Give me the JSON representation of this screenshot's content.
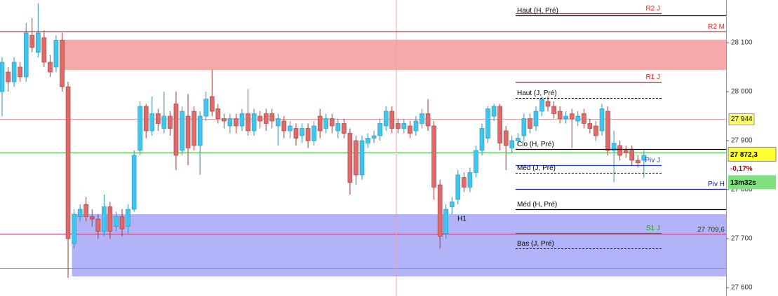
{
  "chart_data": {
    "type": "candlestick",
    "ylim": [
      27583,
      28187
    ],
    "yticks": [
      {
        "value": 28100,
        "label": "28 100"
      },
      {
        "value": 28000,
        "label": "28 000"
      },
      {
        "value": 27900,
        "label": "27 900"
      },
      {
        "value": 27800,
        "label": "27 800"
      },
      {
        "value": 27700,
        "label": "27 700"
      },
      {
        "value": 27600,
        "label": "27 600"
      }
    ],
    "up_color": "#3ec6f0",
    "down_color": "#e06a6a",
    "series": [
      {
        "open": [
          28000,
          28040,
          28020,
          28050,
          28030,
          28115,
          28080,
          28110,
          28060,
          28050,
          28105,
          28010,
          27690,
          27745,
          27770,
          27745,
          27740,
          27715,
          27765,
          27725,
          27745,
          27725,
          27760,
          27880,
          27970,
          27920,
          27955,
          27925,
          27950,
          27975,
          27880,
          27950,
          27960,
          27890,
          27950,
          27990,
          27965,
          27945,
          27930,
          27945,
          27930,
          27955,
          27920,
          27950,
          27955,
          27955,
          27930,
          27940,
          27920,
          27925,
          27910,
          27925,
          27900,
          27950,
          27925,
          27945,
          27920,
          27935,
          27915,
          27900,
          27830,
          27895,
          27905,
          27910,
          27930,
          27960,
          27935,
          27925,
          27930,
          27920,
          27935,
          27955,
          27930,
          27810,
          27710,
          27765,
          27780,
          27825,
          27805,
          27835,
          27880,
          27905,
          27950,
          27970,
          27920,
          27885,
          27900,
          27910,
          27945,
          27930,
          27960,
          27980,
          27970,
          27960,
          27945,
          27955,
          27940,
          27955,
          27935,
          27930,
          27920,
          27960,
          27880,
          27890,
          27880,
          27880,
          27860,
          27860
        ],
        "high": [
          28070,
          28050,
          28070,
          28060,
          28140,
          28150,
          28180,
          28125,
          28075,
          28115,
          28120,
          28020,
          27760,
          27770,
          27785,
          27760,
          27750,
          27790,
          27775,
          27755,
          27760,
          27770,
          27880,
          27980,
          27975,
          27990,
          27965,
          28000,
          27960,
          28000,
          27970,
          27995,
          27970,
          27960,
          28000,
          28045,
          27975,
          27955,
          27955,
          27955,
          27965,
          28005,
          27965,
          27960,
          27965,
          27965,
          27955,
          27950,
          27940,
          27935,
          27935,
          27935,
          27940,
          27965,
          27955,
          27955,
          27945,
          27945,
          27925,
          27910,
          27910,
          27915,
          27920,
          27945,
          27970,
          27970,
          27945,
          27945,
          27940,
          27950,
          27965,
          27985,
          27940,
          27820,
          27770,
          27785,
          27840,
          27835,
          27845,
          27890,
          27935,
          27970,
          27975,
          27975,
          27930,
          27910,
          27915,
          27955,
          27955,
          27970,
          27990,
          27990,
          27980,
          27970,
          27960,
          27965,
          27960,
          27965,
          27945,
          27940,
          27975,
          27970,
          27920,
          27900,
          27890,
          27890,
          27870,
          27880
        ],
        "low": [
          27950,
          28000,
          28010,
          28020,
          28020,
          28080,
          28070,
          28050,
          28030,
          28040,
          28000,
          27620,
          27680,
          27735,
          27735,
          27725,
          27700,
          27705,
          27700,
          27715,
          27705,
          27710,
          27755,
          27870,
          27905,
          27910,
          27920,
          27915,
          27910,
          27840,
          27870,
          27850,
          27880,
          27830,
          27940,
          27950,
          27935,
          27925,
          27915,
          27915,
          27920,
          27910,
          27910,
          27925,
          27920,
          27925,
          27890,
          27905,
          27905,
          27890,
          27895,
          27885,
          27890,
          27905,
          27915,
          27915,
          27905,
          27905,
          27790,
          27810,
          27820,
          27885,
          27895,
          27900,
          27920,
          27915,
          27915,
          27915,
          27905,
          27910,
          27925,
          27920,
          27780,
          27680,
          27700,
          27750,
          27770,
          27795,
          27795,
          27825,
          27870,
          27895,
          27940,
          27880,
          27840,
          27875,
          27890,
          27900,
          27915,
          27920,
          27950,
          27960,
          27945,
          27935,
          27935,
          27885,
          27930,
          27925,
          27915,
          27900,
          27910,
          27870,
          27815,
          27860,
          27865,
          27850,
          27845,
          27825
        ],
        "close": [
          28060,
          28020,
          28060,
          28030,
          28120,
          28090,
          28120,
          28060,
          28040,
          28105,
          28010,
          27700,
          27750,
          27760,
          27745,
          27740,
          27715,
          27765,
          27715,
          27745,
          27720,
          27760,
          27870,
          27970,
          27920,
          27955,
          27935,
          27950,
          27925,
          27870,
          27960,
          27885,
          27890,
          27950,
          27985,
          27960,
          27945,
          27940,
          27945,
          27930,
          27955,
          27920,
          27955,
          27940,
          27935,
          27940,
          27945,
          27920,
          27930,
          27905,
          27925,
          27900,
          27930,
          27920,
          27945,
          27930,
          27935,
          27915,
          27815,
          27830,
          27900,
          27905,
          27910,
          27935,
          27960,
          27925,
          27925,
          27935,
          27915,
          27940,
          27955,
          27930,
          27805,
          27705,
          27760,
          27775,
          27830,
          27805,
          27835,
          27880,
          27925,
          27965,
          27970,
          27895,
          27890,
          27900,
          27905,
          27945,
          27925,
          27960,
          27985,
          27970,
          27955,
          27945,
          27950,
          27945,
          27950,
          27935,
          27925,
          27910,
          27965,
          27880,
          27895,
          27870,
          27875,
          27860,
          27855,
          27870
        ]
      }
    ],
    "zones": [
      {
        "from": 28044,
        "to": 28106,
        "color": "#f7a8a8",
        "from_candle": 10
      },
      {
        "from": 27623,
        "to": 27750,
        "color": "#b3b3fa",
        "from_candle": 12
      }
    ],
    "lines": [
      {
        "value": 27944,
        "color": "#e8a0a0",
        "tag": {
          "value": 27944,
          "label": "27 944"
        }
      },
      {
        "value": 27876,
        "color": "#3cb043"
      },
      {
        "value": 27709.6,
        "color": "#a0306a",
        "text": {
          "value": 27709.6,
          "label": "27 709,6"
        }
      },
      {
        "value": 27640,
        "color": "#5cc05c"
      }
    ],
    "levels": [
      {
        "label": "R2 J",
        "value": 28160,
        "color": "#e02020",
        "style": "solid",
        "range": "short",
        "label_side": "right"
      },
      {
        "label": "Haut (H, Pré)",
        "value": 28156,
        "color": "#000000",
        "style": "solid",
        "range": "long",
        "label_side": "left"
      },
      {
        "label": "R2 M",
        "value": 28123,
        "color": "#e02020",
        "style": "solid",
        "range": "full",
        "label_side": "right"
      },
      {
        "label": "R1 J",
        "value": 28020,
        "color": "#e02020",
        "style": "solid",
        "range": "short",
        "label_side": "right"
      },
      {
        "label": "Haut (J, Pré)",
        "value": 27987,
        "color": "#000000",
        "style": "dashed",
        "range": "short",
        "label_side": "left"
      },
      {
        "label": "Clo (H, Pré)",
        "value": 27883,
        "color": "#000000",
        "style": "solid",
        "range": "long",
        "label_side": "left"
      },
      {
        "label": "Piv J",
        "value": 27850,
        "color": "#2040d0",
        "style": "solid",
        "range": "short",
        "label_side": "right"
      },
      {
        "label": "Méd (J, Pré)",
        "value": 27834,
        "color": "#000000",
        "style": "dashed",
        "range": "short",
        "label_side": "left"
      },
      {
        "label": "Piv H",
        "value": 27801,
        "color": "#101090",
        "style": "solid",
        "range": "long",
        "label_side": "right"
      },
      {
        "label": "Méd (H, Pré)",
        "value": 27760,
        "color": "#000000",
        "style": "solid",
        "range": "long",
        "label_side": "left"
      },
      {
        "label": "S1 J",
        "value": 27711,
        "color": "#20a020",
        "style": "solid",
        "range": "short",
        "label_side": "right"
      },
      {
        "label": "Bas (J, Pré)",
        "value": 27680,
        "color": "#000000",
        "style": "dashed",
        "range": "short",
        "label_side": "left"
      }
    ],
    "annotation": "H1",
    "last_price": {
      "value": 27872.3,
      "label": "27 872,3"
    },
    "change": {
      "value": -0.17,
      "label": "-0,17%"
    },
    "timer": "13m32s"
  }
}
